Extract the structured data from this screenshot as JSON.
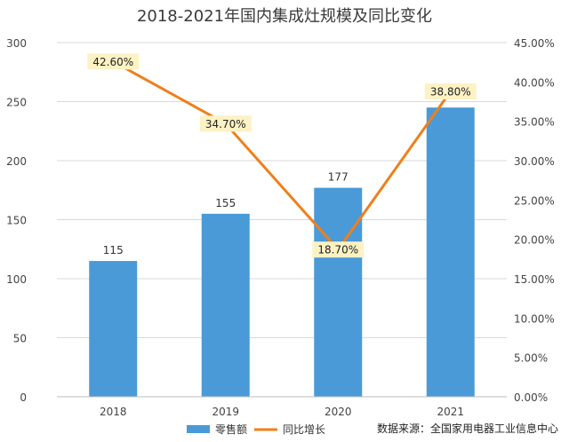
{
  "chart_data": {
    "type": "bar+line",
    "title": "2018-2021年国内集成灶规模及同比变化",
    "categories": [
      "2018",
      "2019",
      "2020",
      "2021"
    ],
    "series": [
      {
        "name": "零售额",
        "type": "bar",
        "axis": "left",
        "values": [
          115,
          155,
          177,
          245
        ],
        "labels": [
          "115",
          "155",
          "177",
          ""
        ],
        "color": "#4a9ad8"
      },
      {
        "name": "同比增长",
        "type": "line",
        "axis": "right",
        "values": [
          42.6,
          34.7,
          18.7,
          38.8
        ],
        "labels": [
          "42.60%",
          "34.70%",
          "18.70%",
          "38.80%"
        ],
        "color": "#f07f1a"
      }
    ],
    "y_left": {
      "min": 0,
      "max": 300,
      "ticks": [
        "0",
        "50",
        "100",
        "150",
        "200",
        "250",
        "300"
      ]
    },
    "y_right": {
      "min": 0,
      "max": 45,
      "ticks": [
        "0.00%",
        "5.00%",
        "10.00%",
        "15.00%",
        "20.00%",
        "25.00%",
        "30.00%",
        "35.00%",
        "40.00%",
        "45.00%"
      ]
    },
    "grid": true,
    "legend_position": "bottom",
    "label_box_color": "#fdf2c4",
    "source": "数据来源：全国家用电器工业信息中心"
  }
}
